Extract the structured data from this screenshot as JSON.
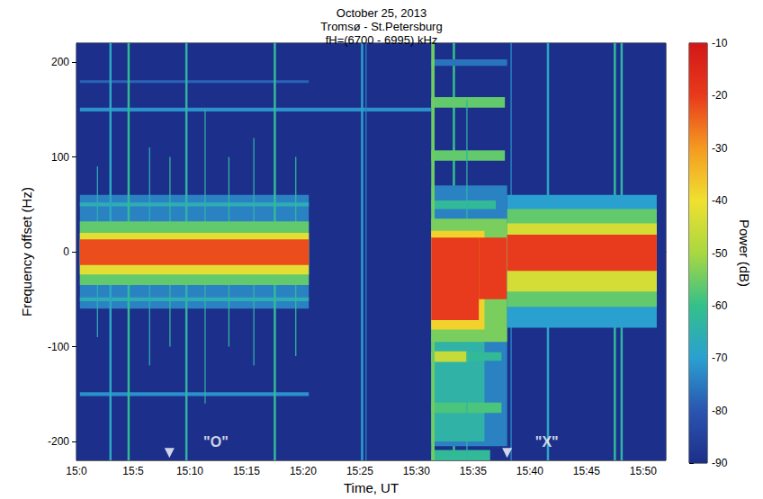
{
  "chart_data": {
    "type": "heatmap",
    "title": [
      "October 25, 2013",
      "Tromsø - St.Petersburg",
      "fH=(6700 - 6995) kHz"
    ],
    "x_label": "Time, UT",
    "y_label": "Frequency offset (Hz)",
    "xlim": [
      900,
      952
    ],
    "xticks": [
      {
        "value": 900,
        "label": "15:0"
      },
      {
        "value": 905,
        "label": "15:5"
      },
      {
        "value": 910,
        "label": "15:10"
      },
      {
        "value": 915,
        "label": "15:15"
      },
      {
        "value": 920,
        "label": "15:20"
      },
      {
        "value": 925,
        "label": "15:25"
      },
      {
        "value": 930,
        "label": "15:30"
      },
      {
        "value": 935,
        "label": "15:35"
      },
      {
        "value": 940,
        "label": "15:40"
      },
      {
        "value": 945,
        "label": "15:45"
      },
      {
        "value": 950,
        "label": "15:50"
      }
    ],
    "ylim": [
      -220,
      220
    ],
    "yticks": [
      -200,
      -100,
      0,
      100,
      200
    ],
    "grid": false,
    "colorbar": {
      "label": "Power (dB)",
      "range": [
        -90,
        -10
      ],
      "ticks": [
        -10,
        -20,
        -30,
        -40,
        -50,
        -60,
        -70,
        -80,
        -90
      ]
    },
    "cells": [
      [
        900,
        952,
        -220,
        220,
        -90
      ],
      [
        900.3,
        920.5,
        -60,
        60,
        -74
      ],
      [
        900.3,
        931.3,
        148,
        152,
        -72
      ],
      [
        900.3,
        920.5,
        -152,
        -148,
        -72
      ],
      [
        900.3,
        920.5,
        178,
        181,
        -78
      ],
      [
        900.3,
        920.5,
        -52,
        -48,
        -66
      ],
      [
        900.3,
        920.5,
        48,
        52,
        -66
      ],
      [
        902.9,
        903.1,
        -220,
        220,
        -68
      ],
      [
        904.5,
        904.7,
        -220,
        220,
        -62
      ],
      [
        909.6,
        909.8,
        -220,
        220,
        -64
      ],
      [
        917.4,
        917.6,
        -220,
        220,
        -62
      ],
      [
        925.1,
        925.3,
        -220,
        220,
        -70
      ],
      [
        925.5,
        925.6,
        -220,
        220,
        -74
      ],
      [
        933.2,
        933.4,
        -220,
        220,
        -60
      ],
      [
        941.5,
        941.7,
        -220,
        220,
        -68
      ],
      [
        947.4,
        947.6,
        -220,
        220,
        -62
      ],
      [
        948.0,
        948.2,
        -220,
        220,
        -64
      ],
      [
        938.3,
        938.4,
        -220,
        220,
        -72
      ],
      [
        901.8,
        901.9,
        -90,
        90,
        -66
      ],
      [
        906.4,
        906.5,
        -120,
        110,
        -66
      ],
      [
        908.2,
        908.3,
        -100,
        100,
        -62
      ],
      [
        911.3,
        911.4,
        -160,
        150,
        -64
      ],
      [
        913.4,
        913.5,
        -100,
        100,
        -62
      ],
      [
        915.6,
        915.7,
        -120,
        120,
        -64
      ],
      [
        919.3,
        919.4,
        -110,
        100,
        -62
      ],
      [
        900.3,
        920.5,
        -35,
        32,
        -56
      ],
      [
        900.3,
        920.5,
        -24,
        20,
        -42
      ],
      [
        900.3,
        920.5,
        -14,
        13,
        -22
      ],
      [
        931.3,
        938,
        -205,
        70,
        -74
      ],
      [
        931.3,
        936,
        -200,
        -90,
        -64
      ],
      [
        931.3,
        938,
        196,
        203,
        -76
      ],
      [
        931.3,
        937.8,
        152,
        163,
        -56
      ],
      [
        931.3,
        937.8,
        96,
        107,
        -56
      ],
      [
        931.3,
        937,
        45,
        54,
        -62
      ],
      [
        931.3,
        934.5,
        -116,
        -105,
        -46
      ],
      [
        934.5,
        937.5,
        -115,
        -106,
        -62
      ],
      [
        931.3,
        937.5,
        -170,
        -159,
        -58
      ],
      [
        931.3,
        936.5,
        -220,
        -209,
        -62
      ],
      [
        931.3,
        931.6,
        -220,
        220,
        -55
      ],
      [
        934.4,
        934.5,
        -220,
        160,
        -64
      ],
      [
        931.3,
        938,
        -95,
        35,
        -54
      ],
      [
        931.3,
        936,
        -82,
        22,
        -38
      ],
      [
        931.3,
        935.5,
        -72,
        15,
        -20
      ],
      [
        935.5,
        938,
        -50,
        15,
        -20
      ],
      [
        938,
        951.2,
        -80,
        60,
        -70
      ],
      [
        938,
        951.2,
        -58,
        45,
        -56
      ],
      [
        938,
        951.2,
        -42,
        30,
        -44
      ],
      [
        938,
        951.2,
        -20,
        18,
        -20
      ]
    ],
    "arrows": [
      {
        "x": 908.2,
        "y": -212
      },
      {
        "x": 938,
        "y": -212
      }
    ],
    "annotations": [
      {
        "text": "\"O\"",
        "x": 912.3,
        "y": -200
      },
      {
        "text": "\"X\"",
        "x": 941.5,
        "y": -200
      }
    ]
  }
}
